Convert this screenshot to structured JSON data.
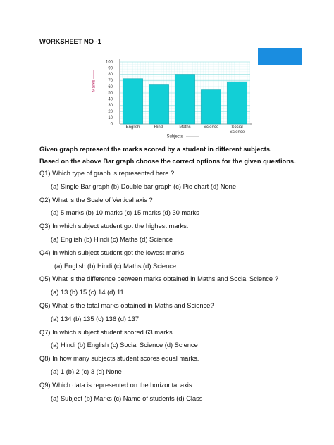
{
  "title": "WORKSHEET NO -1",
  "chart_data": {
    "type": "bar",
    "categories": [
      "English",
      "Hindi",
      "Maths",
      "Science",
      "Social Science"
    ],
    "values": [
      73,
      63,
      80,
      55,
      68
    ],
    "color": "#12cfd6",
    "ylim": [
      0,
      100
    ],
    "yticks": [
      0,
      10,
      20,
      30,
      40,
      50,
      60,
      70,
      80,
      90,
      100
    ],
    "grid": true,
    "x_label": "Subjects",
    "y_label": "Marks"
  },
  "intro": [
    "Given graph represent the marks scored by a student in different subjects.",
    "Based on the above Bar graph choose the correct options for the given questions."
  ],
  "questions": [
    {
      "question": "Q1) Which type of graph is represented here ?",
      "options": "(a)  Single Bar graph  (b) Double bar graph (c) Pie chart (d) None"
    },
    {
      "question": "Q2) What is the Scale of Vertical axis ?",
      "options": "(a)  5 marks (b) 10 marks (c) 15 marks (d) 30 marks"
    },
    {
      "question": "Q3) In which subject student got the highest marks.",
      "options": "(a)  English  (b) Hindi (c) Maths (d) Science"
    },
    {
      "question": "Q4) In which subject student got the lowest marks.",
      "options": "(a)  English  (b) Hindi (c) Maths (d) Science"
    },
    {
      "question": "Q5) What is the difference between marks obtained in Maths and Social Science ?",
      "options": "(a)  13  (b) 15 (c) 14 (d) 11"
    },
    {
      "question": "Q6) What is the total marks obtained in Maths and Science?",
      "options": "(a)  134  (b)  135 (c) 136 (d) 137"
    },
    {
      "question": "Q7) In which subject student scored 63 marks.",
      "options": "(a)  Hindi  (b) English (c) Social Science (d) Science"
    },
    {
      "question": "Q8) In how many subjects student scores equal marks.",
      "options": "(a)  1 (b) 2 (c) 3 (d) None"
    },
    {
      "question": "Q9) Which data is represented on the horizontal axis .",
      "options": "(a)  Subject  (b) Marks  (c) Name of students (d) Class"
    }
  ]
}
